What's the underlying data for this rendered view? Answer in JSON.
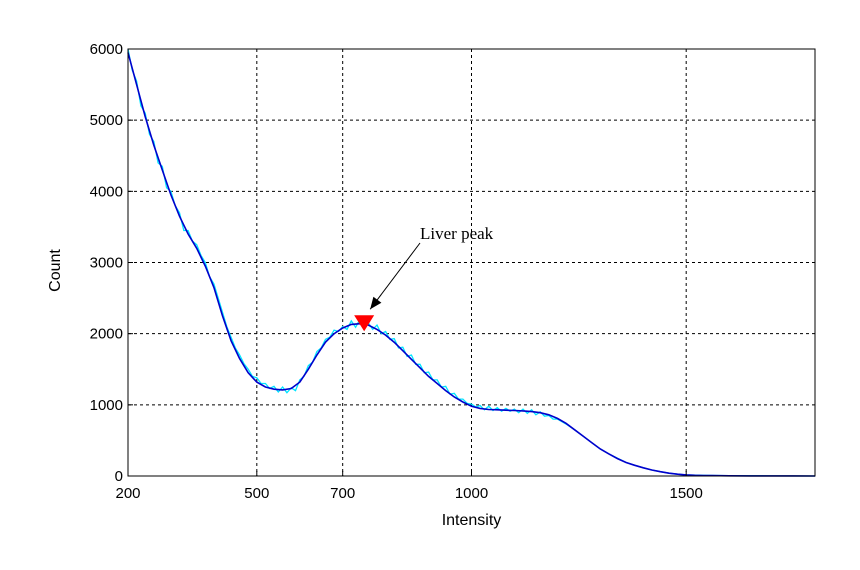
{
  "chart_data": {
    "type": "line",
    "title": "",
    "xlabel": "Intensity",
    "ylabel": "Count",
    "xlim": [
      200,
      1800
    ],
    "ylim": [
      0,
      6000
    ],
    "grid": true,
    "x_ticks": [
      200,
      500,
      700,
      1000,
      1500
    ],
    "y_ticks": [
      0,
      1000,
      2000,
      3000,
      4000,
      5000,
      6000
    ],
    "x_grid": [
      500,
      700,
      1000,
      1500
    ],
    "y_grid": [
      1000,
      2000,
      3000,
      4000,
      5000
    ],
    "colors": {
      "smooth": "#0000cc",
      "raw": "#00e5ff",
      "marker": "#ff0000"
    },
    "series": [
      {
        "key": "smooth",
        "x": [
          200,
          220,
          240,
          260,
          280,
          300,
          320,
          340,
          360,
          380,
          400,
          420,
          440,
          460,
          480,
          500,
          520,
          540,
          560,
          580,
          600,
          620,
          640,
          660,
          680,
          700,
          720,
          740,
          760,
          780,
          800,
          820,
          840,
          860,
          880,
          900,
          920,
          940,
          960,
          980,
          1000,
          1020,
          1040,
          1060,
          1080,
          1100,
          1120,
          1140,
          1160,
          1180,
          1200,
          1220,
          1240,
          1260,
          1280,
          1300,
          1320,
          1340,
          1360,
          1380,
          1400,
          1420,
          1440,
          1460,
          1480,
          1500,
          1520,
          1540,
          1560,
          1580,
          1600,
          1650,
          1700,
          1750,
          1800
        ],
        "values": [
          5950,
          5500,
          5050,
          4650,
          4300,
          3950,
          3650,
          3400,
          3200,
          2950,
          2650,
          2250,
          1900,
          1650,
          1450,
          1320,
          1250,
          1220,
          1210,
          1230,
          1320,
          1500,
          1700,
          1880,
          2000,
          2080,
          2130,
          2140,
          2120,
          2060,
          1980,
          1880,
          1760,
          1640,
          1520,
          1400,
          1300,
          1200,
          1110,
          1040,
          980,
          950,
          935,
          930,
          925,
          920,
          915,
          905,
          890,
          860,
          810,
          740,
          650,
          560,
          470,
          380,
          310,
          245,
          190,
          150,
          115,
          85,
          60,
          40,
          25,
          15,
          10,
          7,
          5,
          4,
          3,
          2,
          1,
          1,
          0
        ]
      },
      {
        "key": "raw",
        "x": [
          200,
          210,
          220,
          230,
          240,
          250,
          260,
          270,
          280,
          290,
          300,
          310,
          320,
          330,
          340,
          350,
          360,
          370,
          380,
          390,
          400,
          410,
          420,
          430,
          440,
          450,
          460,
          470,
          480,
          490,
          500,
          510,
          520,
          530,
          540,
          550,
          560,
          570,
          580,
          590,
          600,
          610,
          620,
          630,
          640,
          650,
          660,
          670,
          680,
          690,
          700,
          710,
          720,
          730,
          740,
          750,
          760,
          770,
          780,
          790,
          800,
          810,
          820,
          830,
          840,
          850,
          860,
          870,
          880,
          890,
          900,
          910,
          920,
          930,
          940,
          950,
          960,
          970,
          980,
          990,
          1000,
          1010,
          1020,
          1030,
          1040,
          1050,
          1060,
          1070,
          1080,
          1090,
          1100,
          1110,
          1120,
          1130,
          1140,
          1150,
          1160,
          1170,
          1180,
          1190,
          1200,
          1220,
          1240,
          1260,
          1280,
          1300,
          1320,
          1340,
          1360,
          1380,
          1400,
          1420,
          1440,
          1460,
          1480,
          1500,
          1550,
          1600,
          1700,
          1800
        ],
        "values": [
          6000,
          5700,
          5550,
          5200,
          5100,
          4800,
          4700,
          4400,
          4350,
          4050,
          4000,
          3800,
          3700,
          3450,
          3450,
          3300,
          3250,
          3100,
          3000,
          2800,
          2700,
          2500,
          2300,
          2100,
          1950,
          1800,
          1700,
          1580,
          1500,
          1400,
          1380,
          1300,
          1300,
          1230,
          1260,
          1180,
          1250,
          1170,
          1240,
          1200,
          1350,
          1400,
          1550,
          1600,
          1750,
          1800,
          1920,
          1950,
          2050,
          2030,
          2100,
          2060,
          2180,
          2090,
          2200,
          2100,
          2150,
          2060,
          2120,
          2000,
          2030,
          1920,
          1930,
          1800,
          1810,
          1680,
          1700,
          1570,
          1570,
          1450,
          1460,
          1350,
          1350,
          1250,
          1260,
          1150,
          1160,
          1080,
          1080,
          1020,
          1010,
          970,
          990,
          930,
          980,
          920,
          960,
          910,
          950,
          910,
          940,
          890,
          940,
          880,
          930,
          860,
          900,
          840,
          850,
          800,
          800,
          730,
          650,
          560,
          470,
          380,
          310,
          250,
          190,
          150,
          115,
          85,
          60,
          40,
          25,
          15,
          8,
          5,
          2,
          0
        ]
      }
    ],
    "annotations": [
      {
        "text": "Liver peak",
        "marker": {
          "x": 750,
          "y": 2090,
          "shape": "triangle-down"
        }
      }
    ]
  }
}
